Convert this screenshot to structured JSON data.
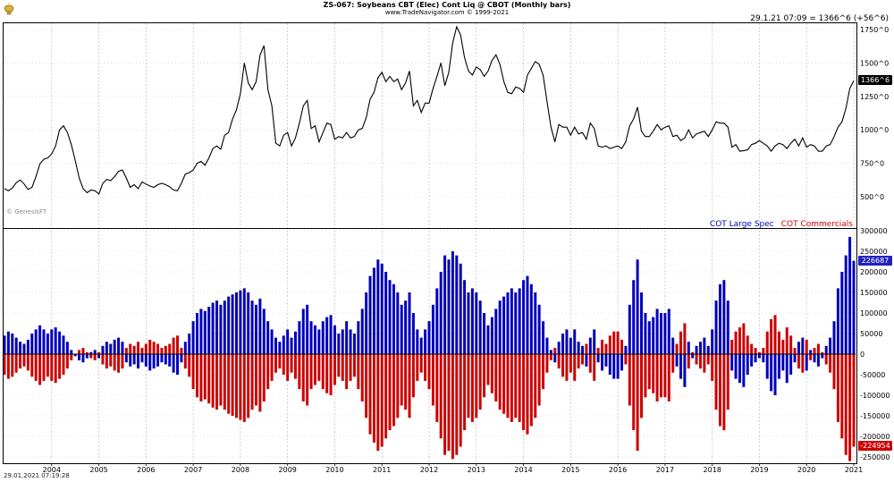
{
  "header": {
    "title": "ZS-067:  Soybeans CBT (Elec) Cont Liq @ CBOT  (Monthly bars)",
    "subtitle": "www.TradeNavigator.com © 1999-2021",
    "quote": "29.1.21 07:09 = 1366^6 (+56^6)"
  },
  "watermark": "© GenesisFT",
  "footer": {
    "timestamp": "29.01.2021  07:19:28"
  },
  "legend": {
    "spec": "COT Large Spec",
    "comm": "COT Commercials"
  },
  "colors": {
    "price_line": "#000000",
    "spec": "#0000bb",
    "comm": "#cc0000",
    "grid": "#c3c3c3",
    "year_grid": "#b5b5b5",
    "price_tag_bg": "#000000",
    "spec_tag_bg": "#2222bb",
    "comm_tag_bg": "#cc0000"
  },
  "price_axis": {
    "ticks": [
      "1750^0",
      "1500^0",
      "1250^0",
      "1000^0",
      "750^0",
      "500^0"
    ],
    "tick_values": [
      1750,
      1500,
      1250,
      1000,
      750,
      500
    ],
    "last_price_label": "1366^6"
  },
  "cot_axis": {
    "tick_values": [
      300000,
      250000,
      200000,
      150000,
      100000,
      50000,
      0,
      -50000,
      -100000,
      -150000,
      -200000,
      -250000
    ],
    "spec_label": "226687",
    "comm_label": "-224954"
  },
  "x_axis": {
    "years": [
      "2004",
      "2005",
      "2006",
      "2007",
      "2008",
      "2009",
      "2010",
      "2011",
      "2012",
      "2013",
      "2014",
      "2015",
      "2016",
      "2017",
      "2018",
      "2019",
      "2020",
      "2021"
    ]
  },
  "chart_data": [
    {
      "type": "line",
      "name": "Soybeans CBT (Elec) Cont Liq @ CBOT - monthly close",
      "interval": "monthly",
      "x_start": "2003-01",
      "x_end": "2021-01",
      "unit": "cents per bushel (^0 = cents)",
      "ylim": [
        450,
        1800
      ],
      "last_value_label": "1366^6 (+56^6)",
      "values": [
        560,
        545,
        565,
        605,
        625,
        595,
        555,
        570,
        650,
        745,
        780,
        790,
        820,
        880,
        1000,
        1030,
        980,
        890,
        770,
        640,
        560,
        530,
        550,
        545,
        520,
        600,
        630,
        620,
        650,
        690,
        700,
        640,
        570,
        590,
        560,
        610,
        595,
        580,
        570,
        590,
        600,
        590,
        575,
        550,
        545,
        600,
        670,
        680,
        700,
        750,
        765,
        735,
        790,
        860,
        880,
        855,
        960,
        980,
        1080,
        1150,
        1270,
        1500,
        1350,
        1300,
        1360,
        1560,
        1630,
        1300,
        1180,
        900,
        880,
        960,
        980,
        880,
        940,
        1050,
        1180,
        1220,
        1010,
        1030,
        910,
        980,
        1050,
        1040,
        930,
        950,
        940,
        980,
        940,
        950,
        1000,
        1010,
        1090,
        1230,
        1280,
        1390,
        1430,
        1360,
        1400,
        1360,
        1380,
        1300,
        1350,
        1440,
        1180,
        1220,
        1130,
        1200,
        1200,
        1310,
        1400,
        1500,
        1330,
        1430,
        1650,
        1770,
        1710,
        1540,
        1440,
        1410,
        1470,
        1450,
        1400,
        1440,
        1520,
        1560,
        1490,
        1360,
        1280,
        1270,
        1320,
        1310,
        1280,
        1410,
        1460,
        1510,
        1490,
        1410,
        1210,
        1020,
        910,
        1040,
        1020,
        1020,
        960,
        1020,
        970,
        980,
        930,
        1050,
        1010,
        880,
        870,
        880,
        860,
        870,
        880,
        860,
        910,
        1030,
        1080,
        1170,
        990,
        950,
        950,
        990,
        1040,
        1000,
        1020,
        1030,
        950,
        960,
        920,
        940,
        1000,
        940,
        970,
        980,
        990,
        950,
        1000,
        1060,
        1050,
        1050,
        1020,
        870,
        890,
        840,
        845,
        850,
        890,
        900,
        920,
        900,
        880,
        840,
        880,
        900,
        890,
        860,
        900,
        930,
        880,
        940,
        870,
        890,
        880,
        840,
        840,
        880,
        890,
        950,
        1020,
        1060,
        1160,
        1310,
        1366.75
      ]
    },
    {
      "type": "bar",
      "name": "COT Large Spec",
      "interval": "monthly",
      "x_start": "2003-01",
      "x_end": "2021-01",
      "unit": "contracts",
      "ylim": [
        -270000,
        310000
      ],
      "last_value": 226687,
      "values": [
        45000,
        55000,
        50000,
        40000,
        30000,
        25000,
        35000,
        50000,
        60000,
        70000,
        60000,
        50000,
        60000,
        65000,
        55000,
        45000,
        30000,
        10000,
        -5000,
        -15000,
        -20000,
        -10000,
        5000,
        10000,
        -10000,
        20000,
        30000,
        25000,
        35000,
        40000,
        30000,
        -20000,
        -30000,
        -25000,
        -35000,
        -20000,
        -30000,
        -40000,
        -35000,
        -30000,
        -20000,
        -25000,
        -30000,
        -45000,
        -50000,
        -20000,
        30000,
        50000,
        80000,
        100000,
        110000,
        105000,
        115000,
        125000,
        130000,
        120000,
        130000,
        140000,
        145000,
        150000,
        155000,
        160000,
        150000,
        130000,
        120000,
        135000,
        110000,
        80000,
        60000,
        40000,
        30000,
        45000,
        60000,
        40000,
        55000,
        80000,
        110000,
        120000,
        80000,
        70000,
        60000,
        80000,
        90000,
        95000,
        70000,
        50000,
        60000,
        80000,
        60000,
        50000,
        80000,
        110000,
        150000,
        190000,
        210000,
        230000,
        220000,
        200000,
        180000,
        170000,
        150000,
        120000,
        130000,
        150000,
        100000,
        60000,
        40000,
        60000,
        80000,
        120000,
        160000,
        200000,
        240000,
        230000,
        250000,
        240000,
        220000,
        180000,
        150000,
        160000,
        150000,
        130000,
        100000,
        70000,
        90000,
        110000,
        130000,
        140000,
        150000,
        160000,
        150000,
        160000,
        180000,
        190000,
        170000,
        150000,
        120000,
        80000,
        40000,
        10000,
        -20000,
        30000,
        50000,
        60000,
        40000,
        60000,
        30000,
        20000,
        -30000,
        40000,
        60000,
        -20000,
        -40000,
        -30000,
        -50000,
        -60000,
        -60000,
        -40000,
        20000,
        120000,
        180000,
        230000,
        150000,
        100000,
        80000,
        90000,
        110000,
        100000,
        100000,
        110000,
        40000,
        -30000,
        -60000,
        -80000,
        30000,
        -10000,
        20000,
        30000,
        40000,
        20000,
        60000,
        130000,
        170000,
        180000,
        130000,
        -40000,
        -60000,
        -70000,
        -80000,
        -50000,
        -30000,
        -20000,
        -10000,
        -20000,
        -60000,
        -90000,
        -100000,
        -60000,
        -40000,
        -70000,
        -50000,
        -20000,
        30000,
        40000,
        -40000,
        10000,
        -20000,
        -30000,
        -10000,
        20000,
        40000,
        80000,
        160000,
        200000,
        240000,
        285000,
        226687
      ]
    },
    {
      "type": "bar",
      "name": "COT Commercials",
      "interval": "monthly",
      "x_start": "2003-01",
      "x_end": "2021-01",
      "unit": "contracts",
      "ylim": [
        -270000,
        310000
      ],
      "last_value": -224954,
      "values": [
        -50000,
        -60000,
        -55000,
        -45000,
        -35000,
        -30000,
        -40000,
        -55000,
        -65000,
        -75000,
        -65000,
        -55000,
        -65000,
        -70000,
        -60000,
        -50000,
        -35000,
        -15000,
        0,
        10000,
        15000,
        5000,
        -10000,
        -15000,
        5000,
        -25000,
        -35000,
        -30000,
        -40000,
        -45000,
        -35000,
        15000,
        25000,
        20000,
        30000,
        15000,
        25000,
        35000,
        30000,
        25000,
        15000,
        20000,
        25000,
        40000,
        45000,
        15000,
        -35000,
        -55000,
        -85000,
        -105000,
        -115000,
        -110000,
        -120000,
        -130000,
        -135000,
        -125000,
        -135000,
        -145000,
        -150000,
        -155000,
        -160000,
        -165000,
        -155000,
        -135000,
        -125000,
        -140000,
        -115000,
        -85000,
        -65000,
        -45000,
        -35000,
        -50000,
        -65000,
        -45000,
        -60000,
        -85000,
        -115000,
        -125000,
        -85000,
        -75000,
        -65000,
        -85000,
        -95000,
        -100000,
        -75000,
        -55000,
        -65000,
        -85000,
        -65000,
        -55000,
        -85000,
        -115000,
        -155000,
        -195000,
        -215000,
        -235000,
        -225000,
        -205000,
        -185000,
        -175000,
        -155000,
        -125000,
        -135000,
        -155000,
        -105000,
        -65000,
        -45000,
        -65000,
        -85000,
        -125000,
        -165000,
        -205000,
        -245000,
        -235000,
        -255000,
        -245000,
        -225000,
        -185000,
        -155000,
        -165000,
        -155000,
        -135000,
        -105000,
        -75000,
        -95000,
        -115000,
        -135000,
        -145000,
        -155000,
        -165000,
        -155000,
        -165000,
        -185000,
        -195000,
        -175000,
        -155000,
        -125000,
        -85000,
        -45000,
        -15000,
        15000,
        -35000,
        -55000,
        -65000,
        -45000,
        -65000,
        -35000,
        -25000,
        25000,
        -45000,
        -65000,
        15000,
        35000,
        25000,
        45000,
        55000,
        55000,
        35000,
        -25000,
        -125000,
        -185000,
        -235000,
        -155000,
        -105000,
        -85000,
        -95000,
        -115000,
        -105000,
        -105000,
        -115000,
        -45000,
        25000,
        55000,
        75000,
        -35000,
        5000,
        -25000,
        -35000,
        -45000,
        -25000,
        -65000,
        -135000,
        -175000,
        -185000,
        -135000,
        35000,
        55000,
        65000,
        75000,
        45000,
        25000,
        15000,
        5000,
        15000,
        55000,
        85000,
        95000,
        55000,
        35000,
        65000,
        45000,
        15000,
        -35000,
        -45000,
        35000,
        -15000,
        15000,
        25000,
        5000,
        -25000,
        -45000,
        -85000,
        -165000,
        -205000,
        -245000,
        -260000,
        -224954
      ]
    }
  ]
}
